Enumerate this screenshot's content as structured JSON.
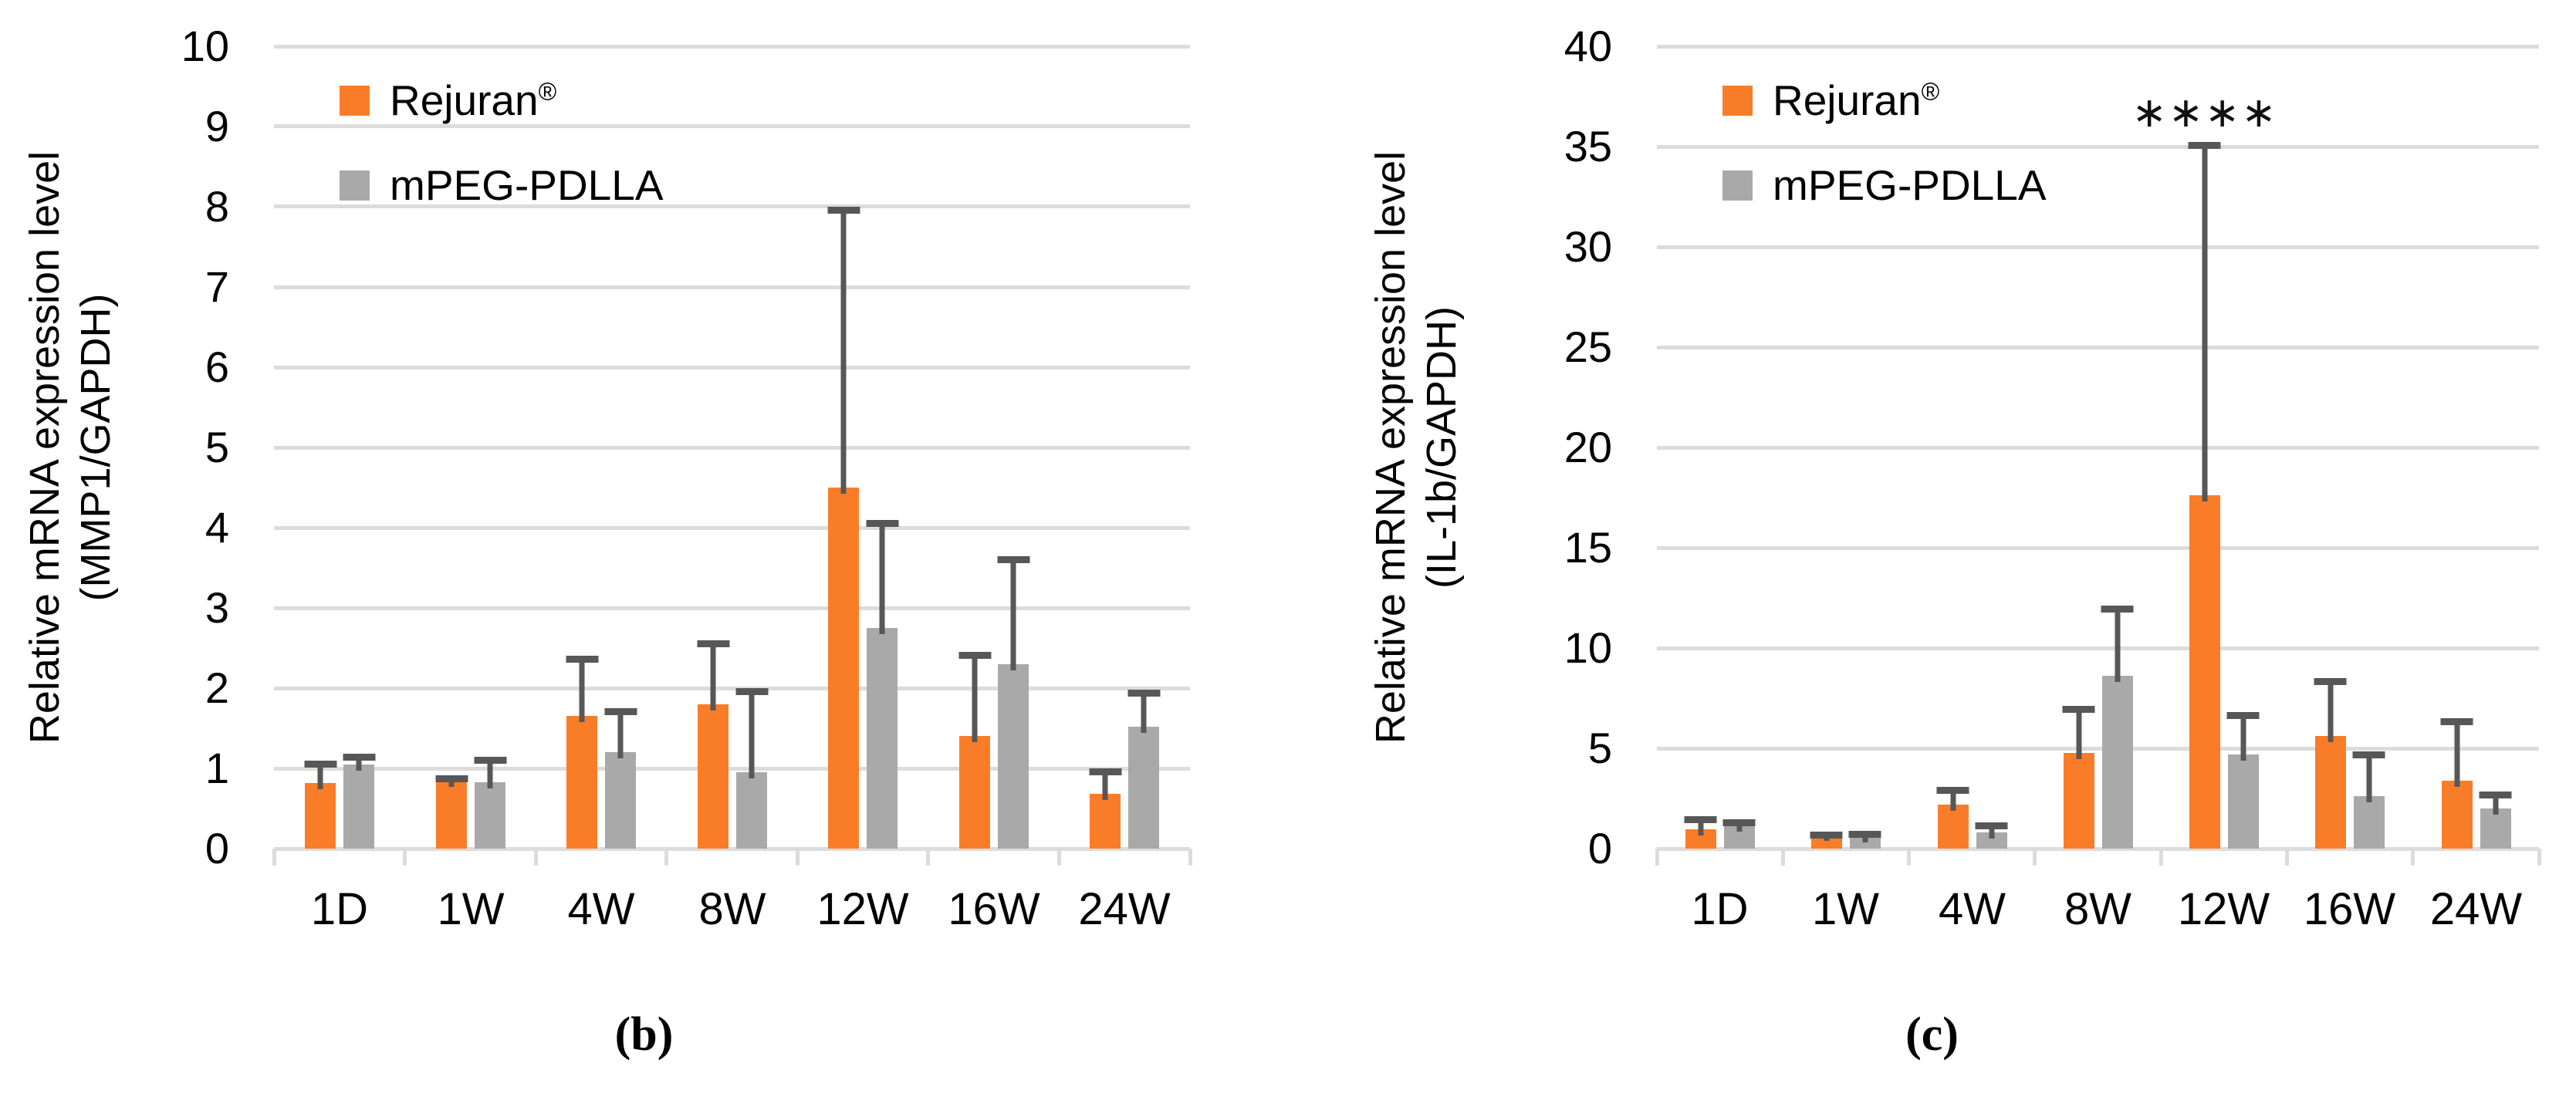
{
  "figure": {
    "background": "#FFFFFF",
    "colors": {
      "rejuran_orange": "#F97D28",
      "mpeg_gray": "#A9A9A9",
      "error_bar": "#575757",
      "gridline": "#DCDCDC",
      "text": "#000000"
    }
  },
  "chart_data": [
    {
      "type": "bar",
      "panel_caption": "(b)",
      "y_axis_title_lines": [
        "Relative mRNA expression level",
        "(MMP1/GAPDH)"
      ],
      "categories": [
        "1D",
        "1W",
        "4W",
        "8W",
        "12W",
        "16W",
        "24W"
      ],
      "ylim": [
        0,
        10
      ],
      "ytick_step": 1,
      "yticks": [
        10,
        9,
        8,
        7,
        6,
        5,
        4,
        3,
        2,
        1,
        0
      ],
      "grid": true,
      "legend_position": "top-left-inside",
      "series": [
        {
          "name": "Rejuran®",
          "label": "Rejuran",
          "label_sup": "®",
          "color": "#F97D28",
          "values": [
            0.82,
            0.85,
            1.65,
            1.8,
            4.5,
            1.4,
            0.68
          ],
          "error_top": [
            1.1,
            0.92,
            2.4,
            2.6,
            8.0,
            2.45,
            1.0
          ]
        },
        {
          "name": "mPEG-PDLLA",
          "label": "mPEG-PDLLA",
          "label_sup": "",
          "color": "#A9A9A9",
          "values": [
            1.05,
            0.83,
            1.2,
            0.95,
            2.75,
            2.3,
            1.52
          ],
          "error_top": [
            1.18,
            1.15,
            1.75,
            2.0,
            4.1,
            3.65,
            1.98
          ]
        }
      ],
      "annotation": null
    },
    {
      "type": "bar",
      "panel_caption": "(c)",
      "y_axis_title_lines": [
        "Relative mRNA expression level",
        "(IL-1b/GAPDH)"
      ],
      "categories": [
        "1D",
        "1W",
        "4W",
        "8W",
        "12W",
        "16W",
        "24W"
      ],
      "ylim": [
        0,
        40
      ],
      "ytick_step": 5,
      "yticks": [
        40,
        35,
        30,
        25,
        20,
        15,
        10,
        5,
        0
      ],
      "grid": true,
      "legend_position": "top-left-inside",
      "series": [
        {
          "name": "Rejuran®",
          "label": "Rejuran",
          "label_sup": "®",
          "color": "#F97D28",
          "values": [
            0.95,
            0.7,
            2.2,
            4.75,
            17.6,
            5.6,
            3.4
          ],
          "error_top": [
            1.6,
            0.85,
            3.1,
            7.1,
            35.2,
            8.5,
            6.5
          ]
        },
        {
          "name": "mPEG-PDLLA",
          "label": "mPEG-PDLLA",
          "label_sup": "",
          "color": "#A9A9A9",
          "values": [
            1.15,
            0.6,
            0.8,
            8.6,
            4.7,
            2.6,
            2.0
          ],
          "error_top": [
            1.45,
            0.85,
            1.3,
            12.1,
            6.8,
            4.85,
            2.85
          ]
        }
      ],
      "annotation": {
        "text": "****",
        "category": "12W",
        "series": "Rejuran®"
      }
    }
  ]
}
